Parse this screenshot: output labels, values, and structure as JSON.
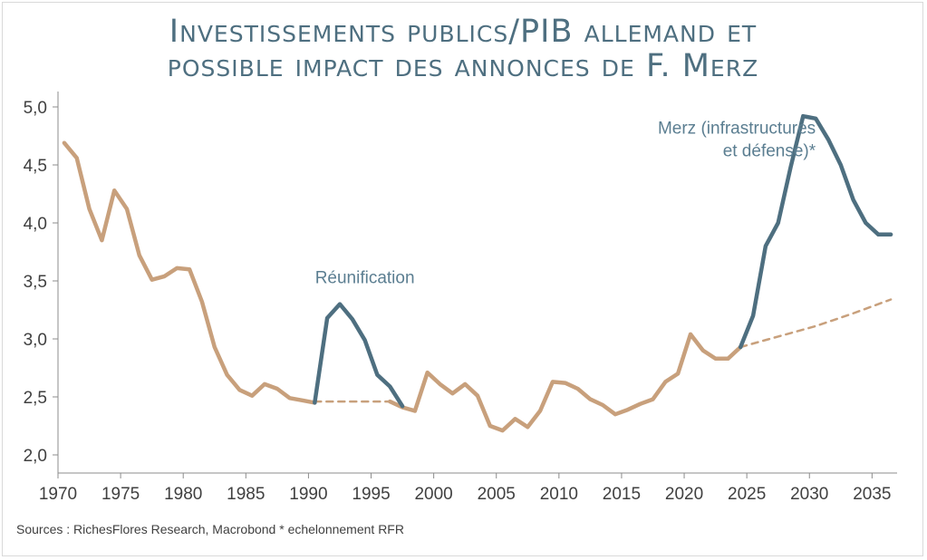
{
  "chart_data": {
    "type": "line",
    "title_lines": [
      "Investissements publics/PIB allemand et",
      "possible impact des annonces de F. Merz"
    ],
    "xlabel": "",
    "ylabel": "",
    "xlim": [
      1970,
      2037
    ],
    "ylim": [
      2.0,
      5.0
    ],
    "x_ticks": [
      1970,
      1975,
      1980,
      1985,
      1990,
      1995,
      2000,
      2005,
      2010,
      2015,
      2020,
      2025,
      2030,
      2035
    ],
    "x_tick_labels": [
      "1970",
      "1975",
      "1980",
      "1985",
      "1990",
      "1995",
      "2000",
      "2005",
      "2010",
      "2015",
      "2020",
      "2025",
      "2030",
      "2035"
    ],
    "y_ticks": [
      2.0,
      2.5,
      3.0,
      3.5,
      4.0,
      4.5,
      5.0
    ],
    "y_tick_labels": [
      "2,0",
      "2,5",
      "3,0",
      "3,5",
      "4,0",
      "4,5",
      "5,0"
    ],
    "colors": {
      "historical": "#c8a07c",
      "scenario": "#4e6f80",
      "trend": "#c8a07c",
      "annotation": "#5b7e91",
      "title": "#4e6f80"
    },
    "series": [
      {
        "style": "solid-tan",
        "x": [
          1970.5,
          1971.5,
          1972.5,
          1973.5,
          1974.5,
          1975.5,
          1976.5,
          1977.5,
          1978.5,
          1979.5,
          1980.5,
          1981.5,
          1982.5,
          1983.5,
          1984.5,
          1985.5,
          1986.5,
          1987.5,
          1988.5,
          1989.5,
          1990.5
        ],
        "y": [
          4.69,
          4.56,
          4.12,
          3.85,
          4.28,
          4.12,
          3.72,
          3.51,
          3.54,
          3.61,
          3.6,
          3.32,
          2.93,
          2.69,
          2.56,
          2.51,
          2.61,
          2.57,
          2.49,
          2.47,
          2.45
        ]
      },
      {
        "style": "solid-blue",
        "x": [
          1990.5,
          1991.5,
          1992.5,
          1993.5,
          1994.5,
          1995.5,
          1996.5,
          1997.5
        ],
        "y": [
          2.45,
          3.18,
          3.3,
          3.17,
          2.99,
          2.69,
          2.59,
          2.42
        ]
      },
      {
        "style": "solid-tan",
        "x": [
          1996.5,
          1997.5,
          1998.5,
          1999.5,
          2000.5,
          2001.5,
          2002.5,
          2003.5,
          2004.5,
          2005.5,
          2006.5,
          2007.5,
          2008.5,
          2009.5,
          2010.5,
          2011.5,
          2012.5,
          2013.5,
          2014.5,
          2015.5,
          2016.5,
          2017.5,
          2018.5,
          2019.5,
          2020.5,
          2021.5,
          2022.5,
          2023.5,
          2024.5
        ],
        "y": [
          2.46,
          2.41,
          2.38,
          2.71,
          2.61,
          2.53,
          2.61,
          2.51,
          2.25,
          2.21,
          2.31,
          2.24,
          2.38,
          2.63,
          2.62,
          2.57,
          2.48,
          2.43,
          2.35,
          2.39,
          2.44,
          2.48,
          2.63,
          2.7,
          3.04,
          2.9,
          2.83,
          2.83,
          2.93
        ]
      },
      {
        "style": "solid-blue",
        "x": [
          2024.5,
          2025.5,
          2026.5,
          2027.5,
          2028.5,
          2029.5,
          2030.5,
          2031.5,
          2032.5,
          2033.5,
          2034.5,
          2035.5,
          2036.5
        ],
        "y": [
          2.93,
          3.2,
          3.8,
          4.0,
          4.48,
          4.92,
          4.9,
          4.72,
          4.5,
          4.2,
          4.0,
          3.9,
          3.9
        ]
      },
      {
        "style": "dashed-tan",
        "x": [
          1990.5,
          1996.5
        ],
        "y": [
          2.46,
          2.46
        ]
      },
      {
        "style": "dashed-tan",
        "x": [
          2024.5,
          2027.5,
          2030.5,
          2033.5,
          2036.5
        ],
        "y": [
          2.93,
          3.02,
          3.11,
          3.22,
          3.34
        ]
      }
    ],
    "annotations": [
      {
        "lines": [
          "Réunification"
        ],
        "x": 1994.5,
        "y": 3.48,
        "anchor": "middle"
      },
      {
        "lines": [
          "Merz (infrastructures",
          "et défense)*"
        ],
        "x": 2030.5,
        "y": 4.77,
        "anchor": "end"
      }
    ],
    "source": "Sources : RichesFlores Research, Macrobond * echelonnement RFR"
  }
}
